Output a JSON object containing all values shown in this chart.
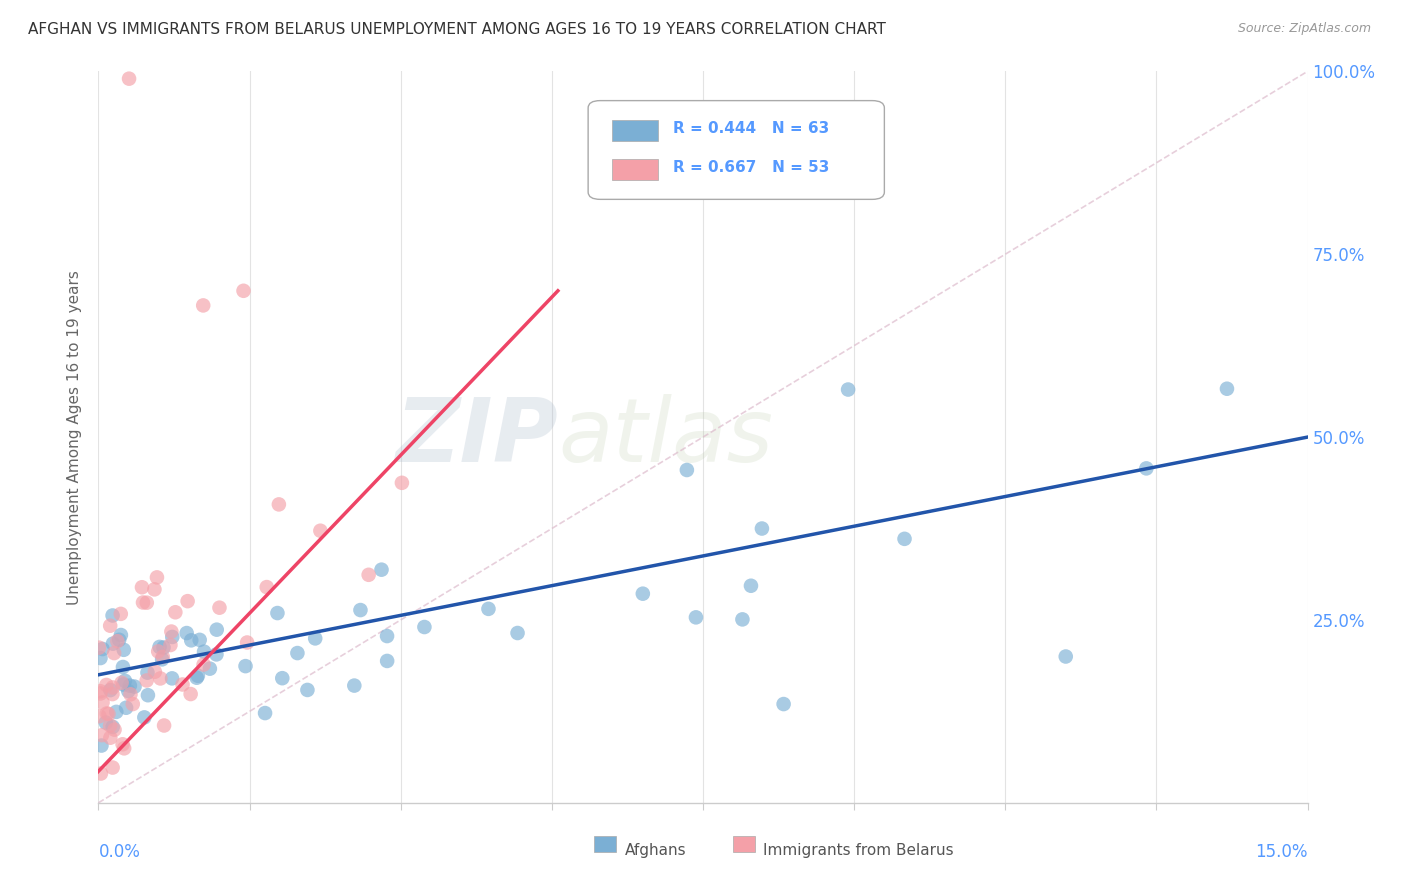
{
  "title": "AFGHAN VS IMMIGRANTS FROM BELARUS UNEMPLOYMENT AMONG AGES 16 TO 19 YEARS CORRELATION CHART",
  "source": "Source: ZipAtlas.com",
  "ylabel": "Unemployment Among Ages 16 to 19 years",
  "watermark_zip": "ZIP",
  "watermark_atlas": "atlas",
  "legend1_label": "Afghans",
  "legend2_label": "Immigrants from Belarus",
  "R_afghans": 0.444,
  "N_afghans": 63,
  "R_belarus": 0.667,
  "N_belarus": 53,
  "blue_color": "#7BAFD4",
  "pink_color": "#F4A0A8",
  "blue_line_color": "#2255AA",
  "pink_line_color": "#EE4466",
  "title_color": "#333333",
  "source_color": "#999999",
  "axis_label_color": "#5599FF",
  "background_color": "#FFFFFF",
  "grid_color": "#E0E0E0",
  "xlim": [
    0.0,
    0.15
  ],
  "ylim": [
    0.0,
    1.0
  ]
}
